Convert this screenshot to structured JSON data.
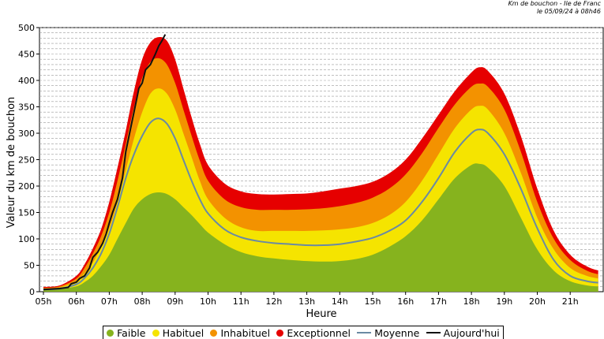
{
  "header": {
    "line1": "Km de bouchon - Ile de Franc",
    "line2": "le 05/09/24 à 08h46"
  },
  "legend": {
    "items": [
      {
        "label": "Faible",
        "color": "#86b31e",
        "kind": "area"
      },
      {
        "label": "Habituel",
        "color": "#f5e400",
        "kind": "area"
      },
      {
        "label": "Inhabituel",
        "color": "#f39200",
        "kind": "area"
      },
      {
        "label": "Exceptionnel",
        "color": "#e60000",
        "kind": "area"
      },
      {
        "label": "Moyenne",
        "color": "#6a8aa3",
        "kind": "line"
      },
      {
        "label": "Aujourd'hui",
        "color": "#111111",
        "kind": "line"
      }
    ]
  },
  "chart_data": {
    "type": "area",
    "xlabel": "Heure",
    "ylabel": "Valeur du  km de bouchon",
    "ylim": [
      0,
      500
    ],
    "xlim": [
      5,
      21.9
    ],
    "yticks": [
      0,
      50,
      100,
      150,
      200,
      250,
      300,
      350,
      400,
      450,
      500
    ],
    "xticks": [
      "05h",
      "06h",
      "07h",
      "08h",
      "09h",
      "10h",
      "11h",
      "12h",
      "13h",
      "14h",
      "15h",
      "16h",
      "17h",
      "18h",
      "19h",
      "20h",
      "21h"
    ],
    "grid": true,
    "legend_position": "bottom",
    "x": [
      5,
      5.5,
      6,
      6.25,
      6.5,
      6.75,
      7,
      7.25,
      7.5,
      7.75,
      8,
      8.25,
      8.5,
      8.75,
      9,
      9.25,
      9.5,
      9.75,
      10,
      10.5,
      11,
      11.5,
      12,
      12.5,
      13,
      13.5,
      14,
      14.5,
      15,
      15.5,
      16,
      16.5,
      17,
      17.5,
      18,
      18.25,
      18.5,
      19,
      19.5,
      20,
      20.5,
      21,
      21.5,
      21.85
    ],
    "series": [
      {
        "name": "Faible",
        "values": [
          3,
          5,
          10,
          18,
          30,
          48,
          70,
          100,
          130,
          158,
          175,
          185,
          188,
          185,
          175,
          160,
          145,
          128,
          112,
          90,
          75,
          67,
          63,
          60,
          58,
          57,
          58,
          62,
          70,
          85,
          105,
          135,
          175,
          215,
          240,
          242,
          235,
          200,
          140,
          80,
          40,
          20,
          12,
          10
        ]
      },
      {
        "name": "Habituel",
        "values": [
          5,
          8,
          20,
          35,
          55,
          85,
          120,
          170,
          230,
          290,
          340,
          375,
          385,
          375,
          345,
          300,
          255,
          210,
          175,
          140,
          122,
          115,
          115,
          115,
          115,
          116,
          118,
          122,
          130,
          145,
          170,
          210,
          260,
          310,
          345,
          352,
          345,
          300,
          225,
          140,
          80,
          45,
          30,
          25
        ]
      },
      {
        "name": "Inhabituel",
        "values": [
          7,
          10,
          25,
          45,
          72,
          105,
          150,
          210,
          280,
          350,
          405,
          435,
          442,
          430,
          395,
          345,
          295,
          248,
          210,
          175,
          160,
          155,
          155,
          155,
          156,
          158,
          162,
          168,
          178,
          195,
          222,
          262,
          310,
          355,
          388,
          394,
          388,
          345,
          265,
          170,
          100,
          60,
          40,
          33
        ]
      },
      {
        "name": "Exceptionnel",
        "values": [
          9,
          12,
          30,
          52,
          82,
          118,
          170,
          235,
          305,
          380,
          440,
          472,
          482,
          475,
          440,
          385,
          330,
          280,
          240,
          205,
          190,
          185,
          184,
          185,
          186,
          190,
          195,
          200,
          208,
          224,
          250,
          290,
          335,
          380,
          415,
          425,
          418,
          375,
          295,
          195,
          115,
          70,
          48,
          40
        ]
      },
      {
        "name": "Moyenne",
        "values": [
          4,
          6,
          14,
          26,
          45,
          72,
          110,
          160,
          215,
          260,
          295,
          320,
          328,
          318,
          290,
          250,
          210,
          175,
          148,
          118,
          103,
          96,
          92,
          90,
          88,
          88,
          90,
          95,
          102,
          115,
          135,
          170,
          215,
          265,
          300,
          307,
          300,
          260,
          195,
          120,
          60,
          30,
          20,
          17
        ]
      }
    ],
    "today": {
      "name": "Aujourd'hui",
      "x": [
        5,
        5.25,
        5.5,
        5.75,
        5.85,
        6,
        6.1,
        6.25,
        6.4,
        6.5,
        6.65,
        6.8,
        6.9,
        7,
        7.1,
        7.25,
        7.4,
        7.5,
        7.6,
        7.75,
        7.9,
        8,
        8.1,
        8.25,
        8.4,
        8.5,
        8.6,
        8.7
      ],
      "values": [
        4,
        5,
        6,
        8,
        15,
        18,
        25,
        30,
        45,
        65,
        75,
        92,
        108,
        130,
        150,
        175,
        215,
        265,
        295,
        340,
        385,
        395,
        420,
        430,
        450,
        465,
        475,
        487
      ]
    }
  }
}
